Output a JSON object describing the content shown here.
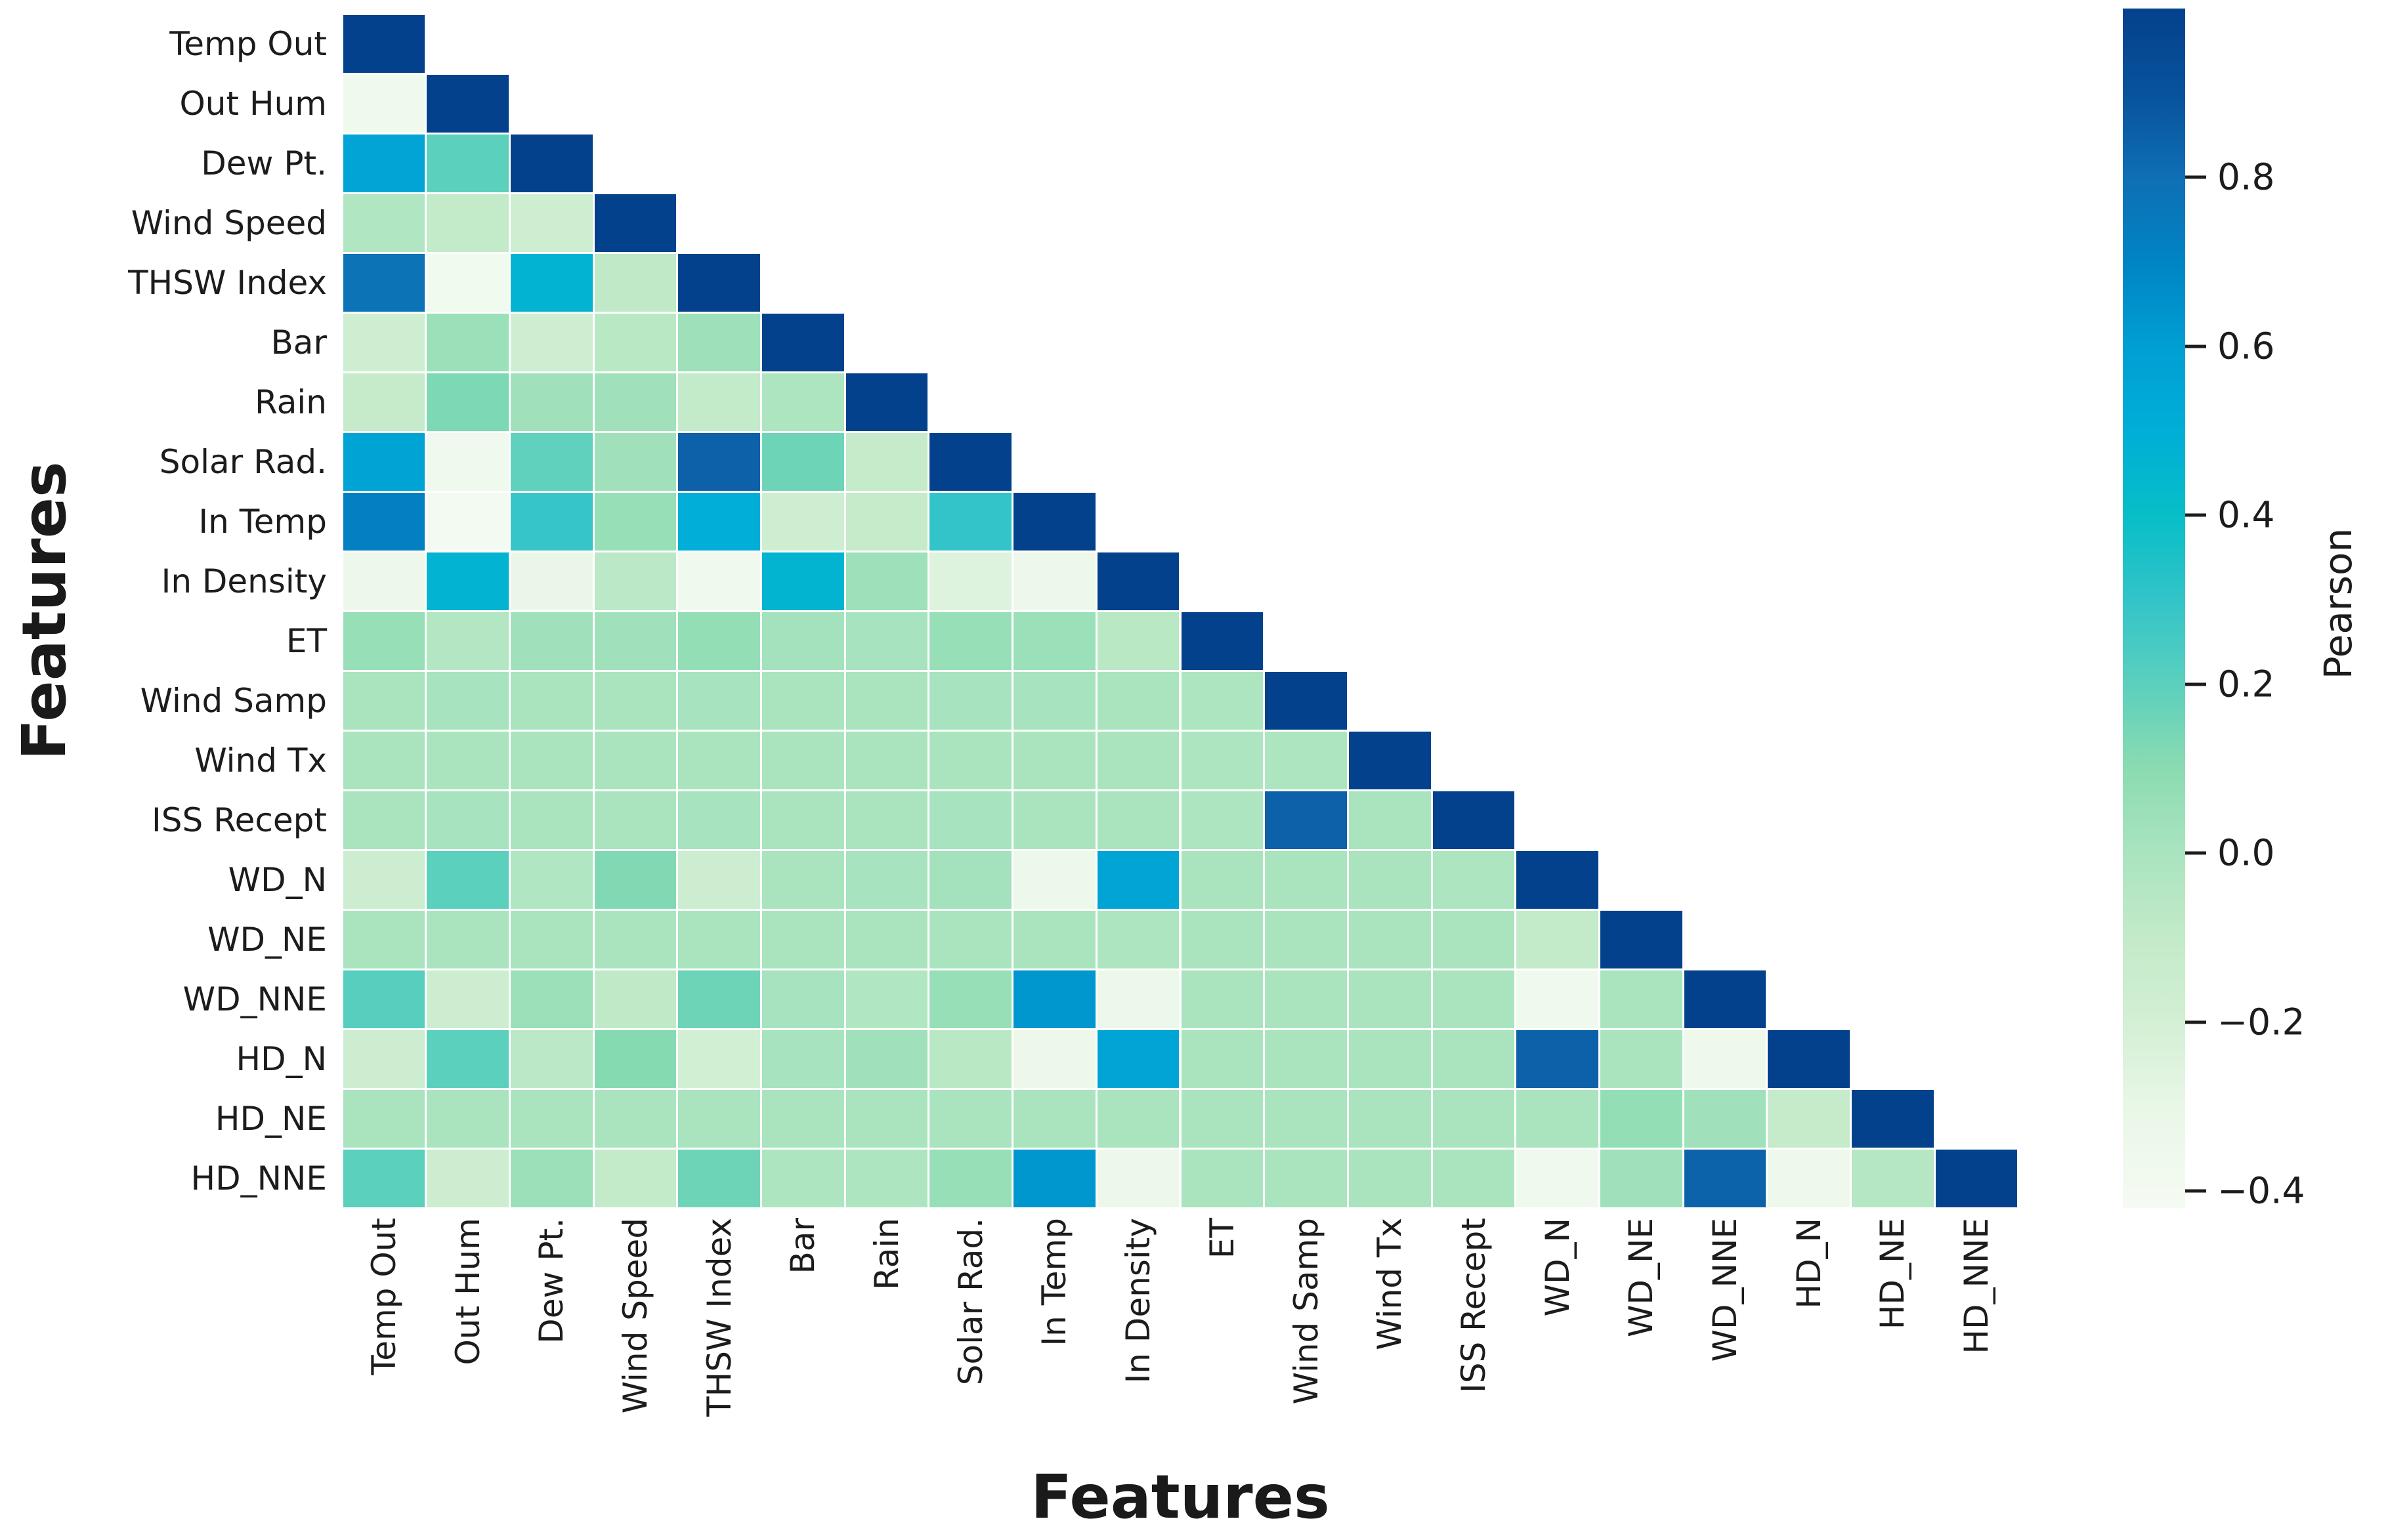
{
  "figure": {
    "x_axis_title": "Features",
    "y_axis_title": "Features",
    "colorbar_label": "Pearson"
  },
  "chart_data": {
    "type": "heatmap",
    "title": "",
    "xlabel": "Features",
    "ylabel": "Features",
    "colorbar_label": "Pearson",
    "mask": "upper triangle hidden (white)",
    "grid": "thin white gaps between cells",
    "legend_position": "right colorbar",
    "features": [
      "Temp Out",
      "Out Hum",
      "Dew Pt.",
      "Wind Speed",
      "THSW Index",
      "Bar",
      "Rain",
      "Solar Rad.",
      "In Temp",
      "In Density",
      "ET",
      "Wind Samp",
      "Wind Tx",
      "ISS Recept",
      "WD_N",
      "WD_NE",
      "WD_NNE",
      "HD_N",
      "HD_NE",
      "HD_NNE"
    ],
    "matrix": [
      [
        1.0
      ],
      [
        -0.37,
        1.0
      ],
      [
        0.56,
        0.2,
        1.0
      ],
      [
        -0.03,
        -0.1,
        -0.17,
        1.0
      ],
      [
        0.78,
        -0.38,
        0.47,
        -0.09,
        1.0
      ],
      [
        -0.17,
        0.05,
        -0.17,
        -0.06,
        0.04,
        1.0
      ],
      [
        -0.11,
        0.13,
        0.03,
        0.03,
        -0.1,
        -0.02,
        1.0
      ],
      [
        0.57,
        -0.37,
        0.19,
        0.03,
        0.85,
        0.16,
        -0.11,
        1.0
      ],
      [
        0.72,
        -0.4,
        0.29,
        0.06,
        0.5,
        -0.17,
        -0.11,
        0.3,
        1.0
      ],
      [
        -0.34,
        0.47,
        -0.31,
        -0.07,
        -0.37,
        0.46,
        0.04,
        -0.25,
        -0.34,
        1.0
      ],
      [
        0.06,
        -0.04,
        0.03,
        0.03,
        0.07,
        0.02,
        0.01,
        0.06,
        0.05,
        -0.06,
        1.0
      ],
      [
        0.0,
        0.01,
        0.0,
        0.0,
        0.01,
        0.0,
        0.0,
        0.01,
        0.01,
        0.0,
        -0.01,
        1.0
      ],
      [
        0.0,
        0.0,
        0.0,
        0.0,
        0.0,
        0.0,
        0.0,
        0.0,
        0.0,
        0.0,
        -0.01,
        -0.02,
        1.0
      ],
      [
        0.0,
        0.01,
        0.0,
        0.0,
        0.01,
        0.0,
        0.0,
        0.01,
        0.0,
        0.0,
        -0.01,
        0.85,
        0.0,
        1.0
      ],
      [
        -0.16,
        0.2,
        -0.03,
        0.12,
        -0.16,
        0.0,
        0.01,
        0.02,
        -0.33,
        0.56,
        0.0,
        0.0,
        0.0,
        -0.01,
        1.0
      ],
      [
        0.0,
        0.0,
        0.0,
        0.0,
        0.0,
        0.0,
        0.0,
        0.0,
        0.0,
        -0.01,
        0.0,
        0.0,
        0.0,
        0.0,
        -0.1,
        1.0
      ],
      [
        0.21,
        -0.16,
        0.05,
        -0.09,
        0.16,
        0.01,
        -0.03,
        0.06,
        0.63,
        -0.33,
        0.0,
        0.0,
        0.0,
        0.0,
        -0.36,
        0.0,
        1.0
      ],
      [
        -0.16,
        0.2,
        -0.07,
        0.11,
        -0.19,
        0.01,
        0.03,
        -0.06,
        -0.34,
        0.56,
        0.0,
        0.0,
        0.0,
        0.0,
        0.85,
        0.0,
        -0.35,
        1.0
      ],
      [
        0.0,
        0.0,
        0.0,
        0.0,
        0.0,
        0.0,
        0.0,
        0.0,
        0.0,
        0.0,
        0.0,
        0.0,
        0.0,
        0.0,
        0.0,
        0.07,
        0.03,
        -0.12,
        1.0
      ],
      [
        0.2,
        -0.16,
        0.05,
        -0.1,
        0.16,
        -0.02,
        -0.02,
        0.06,
        0.63,
        -0.34,
        0.0,
        0.0,
        0.0,
        0.0,
        -0.36,
        0.03,
        0.84,
        -0.35,
        -0.05,
        1.0
      ]
    ],
    "vmin": -0.42,
    "vmax": 1.0,
    "colorbar_ticks": [
      {
        "value": 0.8,
        "label": "0.8"
      },
      {
        "value": 0.6,
        "label": "0.6"
      },
      {
        "value": 0.4,
        "label": "0.4"
      },
      {
        "value": 0.2,
        "label": "0.2"
      },
      {
        "value": 0.0,
        "label": "0.0"
      },
      {
        "value": -0.2,
        "label": "−0.2"
      },
      {
        "value": -0.4,
        "label": "−0.4"
      }
    ],
    "colorscale": [
      [
        -0.42,
        "#f5fbf3"
      ],
      [
        -0.3,
        "#e9f7e7"
      ],
      [
        -0.2,
        "#d3efd4"
      ],
      [
        -0.1,
        "#c3eac9"
      ],
      [
        0.0,
        "#a9e4bf"
      ],
      [
        0.1,
        "#8bdbb1"
      ],
      [
        0.2,
        "#5bd0bd"
      ],
      [
        0.3,
        "#32c4c9"
      ],
      [
        0.4,
        "#07bec7"
      ],
      [
        0.5,
        "#00aed7"
      ],
      [
        0.6,
        "#009fd3"
      ],
      [
        0.7,
        "#0084c4"
      ],
      [
        0.8,
        "#0f6fb4"
      ],
      [
        0.9,
        "#08529c"
      ],
      [
        1.0,
        "#04418c"
      ]
    ]
  }
}
